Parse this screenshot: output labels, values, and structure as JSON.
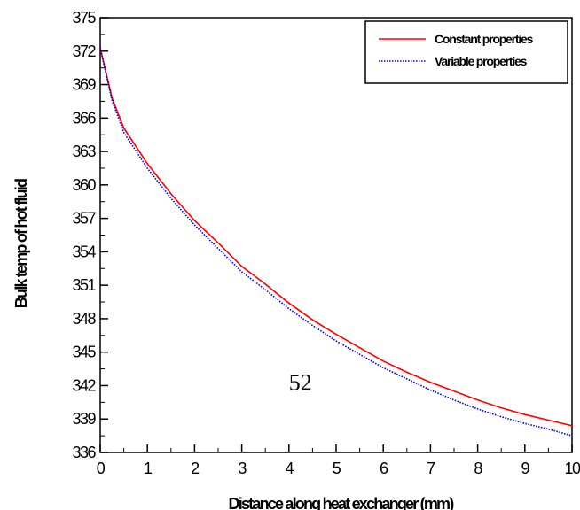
{
  "chart_data": {
    "type": "line",
    "title": "",
    "xlabel": "Distance along heat exchanger (mm)",
    "ylabel": "Bulk temp of hot fluid",
    "xlim": [
      0,
      10
    ],
    "ylim": [
      336,
      375
    ],
    "x_ticks": [
      0,
      1,
      2,
      3,
      4,
      5,
      6,
      7,
      8,
      9,
      10
    ],
    "y_ticks": [
      336,
      339,
      342,
      345,
      348,
      351,
      354,
      357,
      360,
      363,
      366,
      369,
      372,
      375
    ],
    "grid": false,
    "legend_position": "top-right",
    "annotation": "52",
    "series": [
      {
        "name": "Constant properties",
        "color": "#ff0000",
        "style": "solid",
        "x": [
          0,
          0.25,
          0.5,
          1,
          1.5,
          2,
          2.5,
          3,
          3.5,
          4,
          4.5,
          5,
          5.5,
          6,
          6.5,
          7,
          7.5,
          8,
          8.5,
          9,
          9.5,
          10
        ],
        "y": [
          372.3,
          367.8,
          365.1,
          361.9,
          359.2,
          356.8,
          354.8,
          352.7,
          351.1,
          349.4,
          347.9,
          346.6,
          345.4,
          344.2,
          343.2,
          342.3,
          341.5,
          340.7,
          340.0,
          339.4,
          338.9,
          338.4
        ]
      },
      {
        "name": "Variable properties",
        "color": "#0000cc",
        "style": "dotted",
        "x": [
          0,
          0.25,
          0.5,
          1,
          1.5,
          2,
          2.5,
          3,
          3.5,
          4,
          4.5,
          5,
          5.5,
          6,
          6.5,
          7,
          7.5,
          8,
          8.5,
          9,
          9.5,
          10
        ],
        "y": [
          372.3,
          367.6,
          364.7,
          361.5,
          358.8,
          356.4,
          354.3,
          352.2,
          350.6,
          348.9,
          347.4,
          346.0,
          344.8,
          343.6,
          342.6,
          341.6,
          340.7,
          339.9,
          339.2,
          338.6,
          338.1,
          337.5
        ]
      }
    ]
  }
}
